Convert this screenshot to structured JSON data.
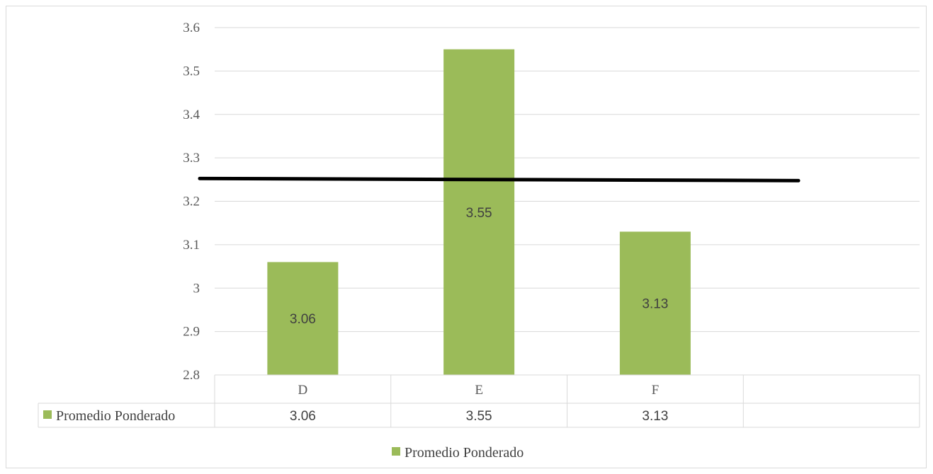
{
  "chart_data": {
    "type": "bar",
    "categories": [
      "D",
      "E",
      "F",
      ""
    ],
    "series": [
      {
        "name": "Promedio Ponderado",
        "values": [
          3.06,
          3.55,
          3.13,
          null
        ],
        "color": "#9bbb59"
      }
    ],
    "data_labels": [
      "3.06",
      "3.55",
      "3.13"
    ],
    "ylim": [
      2.8,
      3.6
    ],
    "yticks": [
      "3.6",
      "3.5",
      "3.4",
      "3.3",
      "3.2",
      "3.1",
      "3",
      "2.9",
      "2.8"
    ],
    "reference_line": {
      "value": 3.25,
      "color": "#000000"
    },
    "grid": true,
    "data_table": true,
    "legend": {
      "position": "bottom",
      "label": "Promedio Ponderado"
    },
    "title": "",
    "xlabel": "",
    "ylabel": ""
  }
}
